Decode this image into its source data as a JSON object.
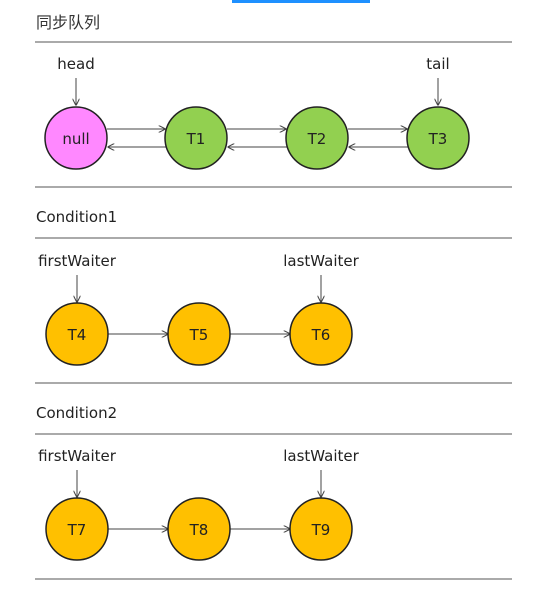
{
  "sections": [
    {
      "title": "同步队列",
      "pointers": {
        "left": "head",
        "right": "tail"
      },
      "nodes": [
        {
          "label": "null",
          "fill": "#ff88ff"
        },
        {
          "label": "T1",
          "fill": "#92d050"
        },
        {
          "label": "T2",
          "fill": "#92d050"
        },
        {
          "label": "T3",
          "fill": "#92d050"
        }
      ],
      "doubly_linked": true
    },
    {
      "title": "Condition1",
      "pointers": {
        "left": "firstWaiter",
        "right": "lastWaiter"
      },
      "nodes": [
        {
          "label": "T4",
          "fill": "#ffc000"
        },
        {
          "label": "T5",
          "fill": "#ffc000"
        },
        {
          "label": "T6",
          "fill": "#ffc000"
        }
      ],
      "doubly_linked": false
    },
    {
      "title": "Condition2",
      "pointers": {
        "left": "firstWaiter",
        "right": "lastWaiter"
      },
      "nodes": [
        {
          "label": "T7",
          "fill": "#ffc000"
        },
        {
          "label": "T8",
          "fill": "#ffc000"
        },
        {
          "label": "T9",
          "fill": "#ffc000"
        }
      ],
      "doubly_linked": false
    }
  ]
}
